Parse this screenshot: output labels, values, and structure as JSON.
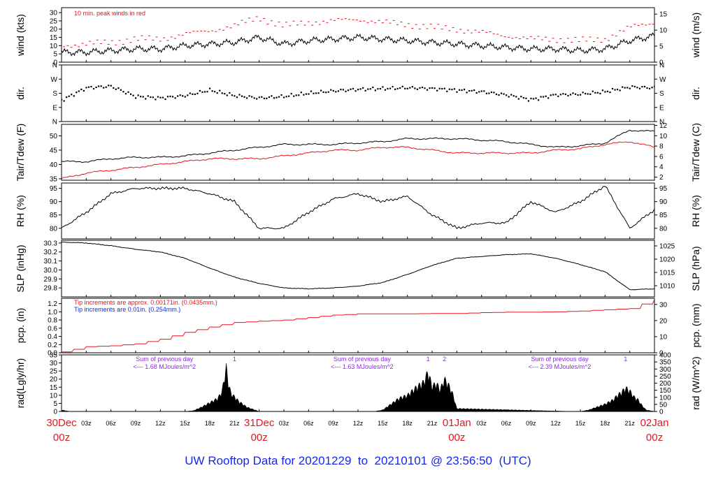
{
  "title": "UW Rooftop Data for 20201229  to  20210101 @ 23:56:50  (UTC)",
  "colors": {
    "red": "#e8141c",
    "blue": "#1428e6",
    "purple": "#8a2be2",
    "black": "#000000"
  },
  "chart_data": [
    {
      "type": "line",
      "id": "wind",
      "ylabel_left": "wind (kts)",
      "ylabel_right": "wind (m/s)",
      "ylim_left": [
        0,
        33
      ],
      "yticks_left": [
        "0",
        "5",
        "10",
        "15",
        "20",
        "25",
        "30"
      ],
      "ylim_right": [
        0,
        17
      ],
      "yticks_right": [
        "0",
        "5",
        "10",
        "15"
      ],
      "annotation": "10 min. peak winds in red",
      "x_hours": [
        0,
        3,
        6,
        9,
        12,
        15,
        18,
        21,
        24,
        27,
        30,
        33,
        36,
        39,
        42,
        45,
        48,
        51,
        54,
        57,
        60,
        63,
        66,
        69,
        72
      ],
      "series": [
        {
          "color": "#000000",
          "values": [
            6,
            6,
            7,
            8,
            8,
            10,
            11,
            12,
            15,
            11,
            13,
            14,
            15,
            14,
            13,
            12,
            11,
            10,
            9,
            8,
            8,
            7,
            8,
            13,
            16
          ]
        },
        {
          "color": "#e8141c",
          "values": [
            10,
            11,
            12,
            14,
            14,
            17,
            19,
            22,
            27,
            22,
            24,
            25,
            26,
            24,
            23,
            21,
            20,
            18,
            16,
            14,
            14,
            13,
            14,
            21,
            24
          ]
        }
      ]
    },
    {
      "type": "scatter",
      "id": "dir",
      "ylabel_left": "dir.",
      "ylabel_right": "dir.",
      "ylim_left": [
        0,
        360
      ],
      "yticks_left": [
        "N",
        "E",
        "S",
        "W",
        "N"
      ],
      "x_hours": [
        0,
        3,
        6,
        9,
        12,
        15,
        18,
        21,
        24,
        27,
        30,
        33,
        36,
        39,
        42,
        45,
        48,
        51,
        54,
        57,
        60,
        63,
        66,
        69,
        72
      ],
      "values": [
        135,
        215,
        225,
        160,
        150,
        165,
        200,
        165,
        150,
        160,
        180,
        195,
        205,
        210,
        215,
        210,
        200,
        190,
        170,
        140,
        170,
        175,
        190,
        220,
        215
      ]
    },
    {
      "type": "line",
      "id": "temp",
      "ylabel_left": "Tair/Tdew (F)",
      "ylabel_right": "Tair/Tdew (C)",
      "ylim_left": [
        34.5,
        54
      ],
      "yticks_left": [
        "35",
        "40",
        "45",
        "50"
      ],
      "ylim_right": [
        1.4,
        12.2
      ],
      "yticks_right": [
        "2",
        "4",
        "6",
        "8",
        "10",
        "12"
      ],
      "x_hours": [
        0,
        3,
        6,
        9,
        12,
        15,
        18,
        21,
        24,
        27,
        30,
        33,
        36,
        39,
        42,
        45,
        48,
        51,
        54,
        57,
        60,
        63,
        66,
        69,
        72
      ],
      "series": [
        {
          "name": "Tair",
          "color": "#000000",
          "values": [
            41,
            41,
            42,
            42.5,
            42.5,
            43,
            44,
            45,
            46,
            47,
            47,
            47,
            47.5,
            48,
            49,
            49,
            49,
            48.5,
            48,
            47,
            46,
            46.5,
            47.5,
            52,
            51.5
          ]
        },
        {
          "name": "Tdew",
          "color": "#e8141c",
          "values": [
            35,
            37,
            38,
            39,
            40,
            41,
            42,
            42,
            42,
            43,
            44,
            45,
            45,
            46,
            46,
            45,
            44,
            44,
            44,
            44,
            45,
            45.5,
            47,
            48,
            46
          ]
        }
      ]
    },
    {
      "type": "line",
      "id": "rh",
      "ylabel_left": "RH (%)",
      "ylabel_right": "RH (%)",
      "ylim_left": [
        76,
        97
      ],
      "yticks_left": [
        "80",
        "85",
        "90",
        "95"
      ],
      "yticks_right": [
        "80",
        "85",
        "90",
        "95"
      ],
      "x_hours": [
        0,
        3,
        6,
        9,
        12,
        15,
        18,
        21,
        24,
        27,
        30,
        33,
        36,
        39,
        42,
        45,
        48,
        51,
        54,
        57,
        60,
        63,
        66,
        69,
        72
      ],
      "values": [
        80,
        86,
        93,
        95,
        95,
        95,
        93,
        90,
        80,
        80,
        86,
        91,
        93,
        90,
        92,
        85,
        80,
        82,
        82,
        90,
        86,
        90,
        96,
        80,
        87
      ]
    },
    {
      "type": "line",
      "id": "slp",
      "ylabel_left": "SLP (inHg)",
      "ylabel_right": "SLP (hPa)",
      "ylim_left": [
        29.7,
        30.33
      ],
      "yticks_left": [
        "29.8",
        "29.9",
        "30.0",
        "30.1",
        "30.2",
        "30.3"
      ],
      "ylim_right": [
        1005.8,
        1027.1
      ],
      "yticks_right": [
        "1010",
        "1015",
        "1020",
        "1025"
      ],
      "x_hours": [
        0,
        3,
        6,
        9,
        12,
        15,
        18,
        21,
        24,
        27,
        30,
        33,
        36,
        39,
        42,
        45,
        48,
        51,
        54,
        57,
        60,
        63,
        66,
        69,
        72
      ],
      "values": [
        30.31,
        30.3,
        30.27,
        30.23,
        30.2,
        30.13,
        30.02,
        29.92,
        29.85,
        29.8,
        29.79,
        29.8,
        29.82,
        29.86,
        29.95,
        30.05,
        30.13,
        30.15,
        30.17,
        30.18,
        30.13,
        30.06,
        29.98,
        29.78,
        29.79
      ]
    },
    {
      "type": "line",
      "id": "pcp",
      "ylabel_left": "pcp. (in)",
      "ylabel_right": "pcp. (mm)",
      "ylim_left": [
        0,
        1.33
      ],
      "yticks_left": [
        "0.0",
        "0.2",
        "0.4",
        "0.6",
        "0.8",
        "1.0",
        "1.2"
      ],
      "ylim_right": [
        0,
        33.8
      ],
      "yticks_right": [
        "0",
        "10",
        "20",
        "30"
      ],
      "annotations": [
        {
          "text": "Tip increments are approx. 0.00171in. (0.0435mm.)",
          "color": "#e8141c"
        },
        {
          "text": "Tip increments are 0.01in. (0.254mm.)",
          "color": "#1428e6"
        }
      ],
      "x_hours": [
        0,
        3,
        6,
        9,
        12,
        15,
        18,
        21,
        24,
        27,
        30,
        33,
        36,
        39,
        42,
        45,
        48,
        51,
        54,
        57,
        60,
        63,
        66,
        69,
        72
      ],
      "values": [
        0.02,
        0.15,
        0.17,
        0.22,
        0.33,
        0.5,
        0.63,
        0.74,
        0.77,
        0.8,
        0.86,
        0.92,
        0.95,
        0.95,
        0.95,
        0.96,
        0.96,
        0.98,
        0.99,
        0.99,
        1.0,
        1.02,
        1.05,
        1.08,
        1.3
      ]
    },
    {
      "type": "area",
      "id": "rad",
      "ylabel_left": "rad(Lgly/hr)",
      "ylabel_right": "rad (W/m^2)",
      "ylim_left": [
        0,
        35
      ],
      "yticks_left": [
        "0",
        "5",
        "10",
        "15",
        "20",
        "25",
        "30",
        "35"
      ],
      "ylim_right": [
        0,
        400
      ],
      "yticks_right": [
        "0",
        "50",
        "100",
        "150",
        "200",
        "250",
        "300",
        "350",
        "400"
      ],
      "day_notes": [
        {
          "hour": 12,
          "line1": "Sum of previous day",
          "line2": "<--- 1.68 MJoules/m^2"
        },
        {
          "hour": 36,
          "line1": "Sum of previous day",
          "line2": "<--- 1.63 MJoules/m^2"
        },
        {
          "hour": 60,
          "line1": "Sum of previous day",
          "line2": "<--- 2.39 MJoules/m^2"
        }
      ],
      "markers": [
        {
          "hour": 21,
          "label": "1"
        },
        {
          "hour": 44.5,
          "label": "1"
        },
        {
          "hour": 46.5,
          "label": "2"
        },
        {
          "hour": 68.5,
          "label": "1"
        }
      ],
      "x_hours": [
        0,
        1,
        2,
        15,
        16,
        17,
        18,
        19,
        19.5,
        20,
        20.3,
        20.6,
        21,
        21.5,
        22,
        22.5,
        23,
        23.5,
        24,
        38,
        39,
        40,
        41,
        42,
        43,
        44,
        44.5,
        45,
        45.5,
        46,
        46.5,
        47,
        47.5,
        48,
        62,
        63,
        64,
        65,
        66,
        67,
        67.5,
        68,
        68.5,
        69,
        69.5,
        70,
        70.5,
        71,
        72
      ],
      "values": [
        1,
        0,
        0,
        0,
        0.5,
        3,
        6,
        9,
        14,
        30,
        18,
        12,
        10,
        7,
        5,
        3,
        2,
        1,
        0,
        0,
        1,
        5,
        9,
        11,
        16,
        20,
        27,
        17,
        19,
        15,
        22,
        18,
        12,
        2,
        0,
        0,
        1,
        3,
        5,
        8,
        11,
        13,
        16,
        14,
        10,
        8,
        4,
        1,
        0
      ]
    }
  ],
  "x_axis": {
    "ticks_small": [
      "03z",
      "06z",
      "09z",
      "12z",
      "15z",
      "18z",
      "21z",
      "03z",
      "06z",
      "09z",
      "12z",
      "15z",
      "18z",
      "21z",
      "03z",
      "06z",
      "09z",
      "12z",
      "15z",
      "18z",
      "21z"
    ],
    "days": [
      {
        "date": "30Dec",
        "zone": "00z"
      },
      {
        "date": "31Dec",
        "zone": "00z"
      },
      {
        "date": "01Jan",
        "zone": "00z"
      },
      {
        "date": "02Jan",
        "zone": "00z"
      }
    ]
  }
}
